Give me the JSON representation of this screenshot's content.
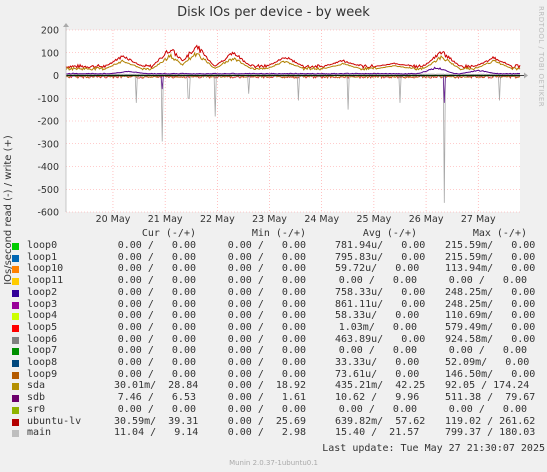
{
  "chart_data": {
    "type": "line",
    "title": "Disk IOs per device - by week",
    "ylabel": "IOs/second read (-) / write (+)",
    "ylim": [
      -600,
      200
    ],
    "yticks": [
      200,
      100,
      0,
      -100,
      -200,
      -300,
      -400,
      -500,
      -600
    ],
    "ytick_labels": [
      "200",
      "100",
      "0",
      "-100",
      "-200",
      "-300",
      "-400",
      "-500",
      "-600"
    ],
    "xticks": [
      "20 May",
      "21 May",
      "22 May",
      "23 May",
      "24 May",
      "25 May",
      "26 May",
      "27 May"
    ],
    "grid": true,
    "series": [
      {
        "name": "ubuntu-lv",
        "color": "#cc0000",
        "write_peaks": [
          [
            0.2,
            95
          ],
          [
            1.1,
            130
          ],
          [
            1.6,
            145
          ],
          [
            2.3,
            110
          ],
          [
            3.3,
            90
          ],
          [
            4.4,
            70
          ],
          [
            5.4,
            55
          ],
          [
            6.3,
            115
          ],
          [
            7.3,
            85
          ]
        ],
        "write_base": 40,
        "read_dips": []
      },
      {
        "name": "sda",
        "color": "#b08000",
        "write_peaks": [
          [
            0.2,
            70
          ],
          [
            1.1,
            95
          ],
          [
            1.6,
            110
          ],
          [
            2.3,
            85
          ],
          [
            3.3,
            70
          ],
          [
            4.4,
            55
          ],
          [
            5.4,
            45
          ],
          [
            6.3,
            90
          ],
          [
            7.3,
            70
          ]
        ],
        "write_base": 30,
        "read_dips": []
      },
      {
        "name": "main",
        "color": "#999999",
        "write_peaks": [],
        "write_base": 5,
        "read_dips": [
          [
            0.45,
            -120
          ],
          [
            0.95,
            -290
          ],
          [
            1.45,
            -100
          ],
          [
            1.95,
            -180
          ],
          [
            2.6,
            -80
          ],
          [
            3.55,
            -110
          ],
          [
            4.5,
            -150
          ],
          [
            5.5,
            -120
          ],
          [
            6.35,
            -560
          ],
          [
            7.4,
            -110
          ]
        ]
      },
      {
        "name": "sdb",
        "color": "#550088",
        "write_peaks": [
          [
            0.3,
            20
          ],
          [
            6.2,
            40
          ],
          [
            7.0,
            25
          ]
        ],
        "write_base": 8,
        "read_dips": [
          [
            0.95,
            -60
          ],
          [
            6.35,
            -120
          ]
        ]
      },
      {
        "name": "loop",
        "color": "#00aa00",
        "write_peaks": [],
        "write_base": 0,
        "read_dips": []
      }
    ]
  },
  "side_credit": "RRDTOOL / TOBI OETIKER",
  "legend": {
    "headers": {
      "cur": "Cur (-/+)",
      "min": "Min (-/+)",
      "avg": "Avg (-/+)",
      "max": "Max (-/+)"
    },
    "rows": [
      {
        "name": "loop0",
        "color": "#00cc00",
        "cur": "0.00 /   0.00",
        "min": "0.00 /   0.00",
        "avg": "781.94u/   0.00",
        "max": "215.59m/   0.00"
      },
      {
        "name": "loop1",
        "color": "#0066b3",
        "cur": "0.00 /   0.00",
        "min": "0.00 /   0.00",
        "avg": "795.83u/   0.00",
        "max": "215.59m/   0.00"
      },
      {
        "name": "loop10",
        "color": "#ff8000",
        "cur": "0.00 /   0.00",
        "min": "0.00 /   0.00",
        "avg": "59.72u/   0.00",
        "max": "113.94m/   0.00"
      },
      {
        "name": "loop11",
        "color": "#ffcc00",
        "cur": "0.00 /   0.00",
        "min": "0.00 /   0.00",
        "avg": "0.00 /   0.00",
        "max": "0.00 /   0.00"
      },
      {
        "name": "loop2",
        "color": "#330099",
        "cur": "0.00 /   0.00",
        "min": "0.00 /   0.00",
        "avg": "758.33u/   0.00",
        "max": "248.25m/   0.00"
      },
      {
        "name": "loop3",
        "color": "#990099",
        "cur": "0.00 /   0.00",
        "min": "0.00 /   0.00",
        "avg": "861.11u/   0.00",
        "max": "248.25m/   0.00"
      },
      {
        "name": "loop4",
        "color": "#ccff00",
        "cur": "0.00 /   0.00",
        "min": "0.00 /   0.00",
        "avg": "58.33u/   0.00",
        "max": "110.69m/   0.00"
      },
      {
        "name": "loop5",
        "color": "#ff0000",
        "cur": "0.00 /   0.00",
        "min": "0.00 /   0.00",
        "avg": "1.03m/   0.00",
        "max": "579.49m/   0.00"
      },
      {
        "name": "loop6",
        "color": "#808080",
        "cur": "0.00 /   0.00",
        "min": "0.00 /   0.00",
        "avg": "463.89u/   0.00",
        "max": "924.58m/   0.00"
      },
      {
        "name": "loop7",
        "color": "#008f00",
        "cur": "0.00 /   0.00",
        "min": "0.00 /   0.00",
        "avg": "0.00 /   0.00",
        "max": "0.00 /   0.00"
      },
      {
        "name": "loop8",
        "color": "#00487d",
        "cur": "0.00 /   0.00",
        "min": "0.00 /   0.00",
        "avg": "33.33u/   0.00",
        "max": "52.09m/   0.00"
      },
      {
        "name": "loop9",
        "color": "#b35a00",
        "cur": "0.00 /   0.00",
        "min": "0.00 /   0.00",
        "avg": "73.61u/   0.00",
        "max": "146.50m/   0.00"
      },
      {
        "name": "sda",
        "color": "#b38f00",
        "cur": "30.01m/  28.84",
        "min": "0.00 /  18.92",
        "avg": "435.21m/  42.25",
        "max": "92.05 / 174.24"
      },
      {
        "name": "sdb",
        "color": "#6b006b",
        "cur": "7.46 /   6.53",
        "min": "0.00 /   1.61",
        "avg": "10.62 /   9.96",
        "max": "511.38 /  79.67"
      },
      {
        "name": "sr0",
        "color": "#8fb300",
        "cur": "0.00 /   0.00",
        "min": "0.00 /   0.00",
        "avg": "0.00 /   0.00",
        "max": "0.00 /   0.00"
      },
      {
        "name": "ubuntu-lv",
        "color": "#b30000",
        "cur": "30.59m/  39.31",
        "min": "0.00 /  25.69",
        "avg": "639.82m/  57.62",
        "max": "119.02 / 261.62"
      },
      {
        "name": "main",
        "color": "#bebebe",
        "cur": "11.04 /   9.14",
        "min": "0.00 /   2.98",
        "avg": "15.40 /  21.57",
        "max": "799.37 / 180.03"
      }
    ]
  },
  "footer": "Last update: Tue May 27 21:30:07 2025",
  "credit": "Munin 2.0.37-1ubuntu0.1"
}
